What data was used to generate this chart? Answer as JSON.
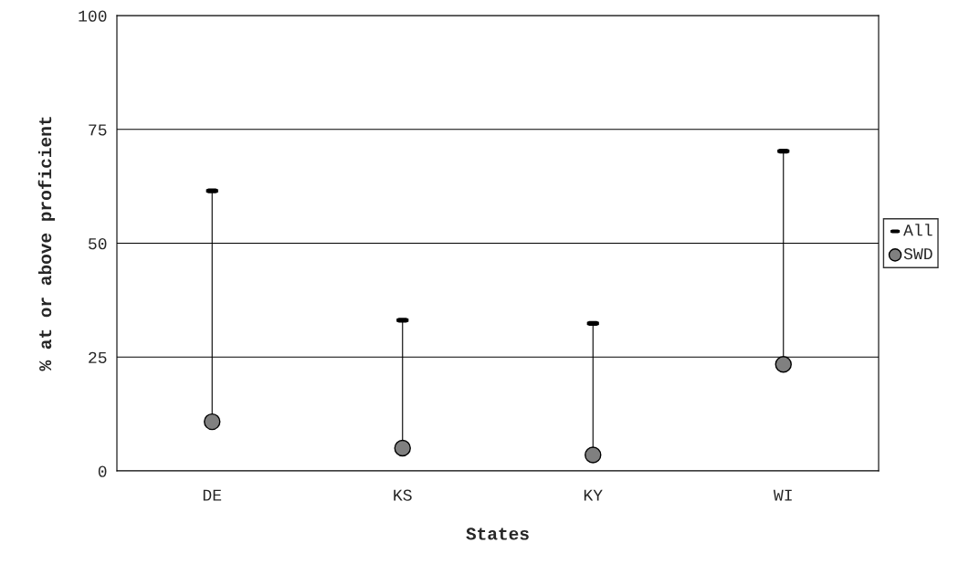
{
  "chart_data": {
    "type": "scatter",
    "xlabel": "States",
    "ylabel": "% at or above proficient",
    "categories": [
      "DE",
      "KS",
      "KY",
      "WI"
    ],
    "series": [
      {
        "name": "All",
        "color": "#000000",
        "values": [
          61.5,
          33.1,
          32.4,
          70.2
        ]
      },
      {
        "name": "SWD",
        "color": "#808080",
        "marker": "circle",
        "values": [
          10.8,
          5.0,
          3.5,
          23.4
        ]
      }
    ],
    "ylim": [
      0,
      100
    ],
    "yticks": [
      0,
      25,
      50,
      75,
      100
    ],
    "grid": "y",
    "legend": "right"
  }
}
